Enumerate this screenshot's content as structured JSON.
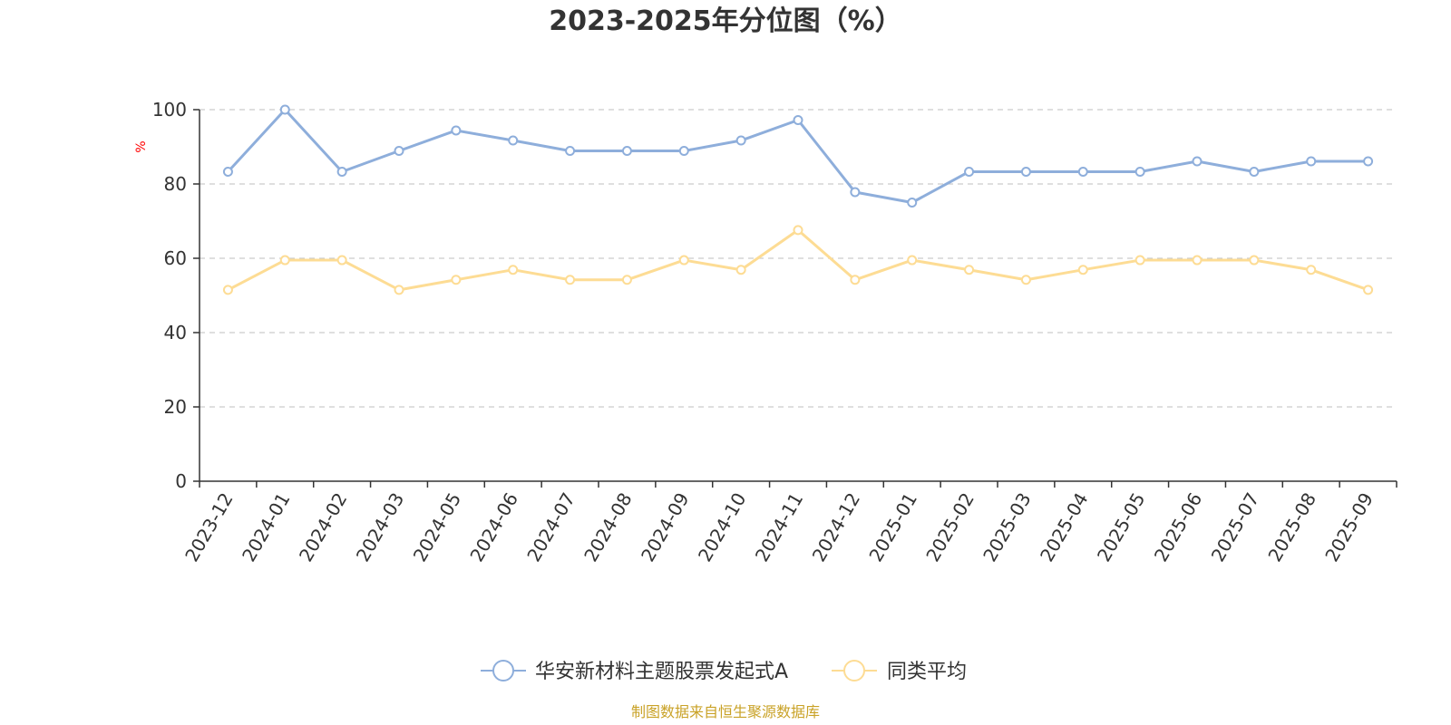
{
  "chart_data": {
    "type": "line",
    "title": "2023-2025年分位图（%）",
    "ylabel": "%",
    "ylim": [
      0,
      100
    ],
    "yticks": [
      0,
      20,
      40,
      60,
      80,
      100
    ],
    "grid": true,
    "legend_position": "bottom",
    "categories": [
      "2023-12",
      "2024-01",
      "2024-02",
      "2024-03",
      "2024-05",
      "2024-06",
      "2024-07",
      "2024-08",
      "2024-09",
      "2024-10",
      "2024-11",
      "2024-12",
      "2025-01",
      "2025-02",
      "2025-03",
      "2025-04",
      "2025-05",
      "2025-06",
      "2025-07",
      "2025-08",
      "2025-09"
    ],
    "series": [
      {
        "name": "华安新材料主题股票发起式A",
        "color": "#8eaedb",
        "values": [
          83.3,
          100,
          83.3,
          88.9,
          94.4,
          91.7,
          88.9,
          88.9,
          88.9,
          91.7,
          97.2,
          77.8,
          75.0,
          83.3,
          83.3,
          83.3,
          83.3,
          86.1,
          83.3,
          86.1,
          86.1
        ]
      },
      {
        "name": "同类平均",
        "color": "#fddc94",
        "values": [
          51.5,
          59.5,
          59.5,
          51.5,
          54.2,
          56.9,
          54.2,
          54.2,
          59.5,
          56.9,
          67.6,
          54.2,
          59.5,
          56.9,
          54.2,
          56.9,
          59.5,
          59.5,
          59.5,
          56.9,
          51.5
        ]
      }
    ],
    "source": "制图数据来自恒生聚源数据库"
  }
}
